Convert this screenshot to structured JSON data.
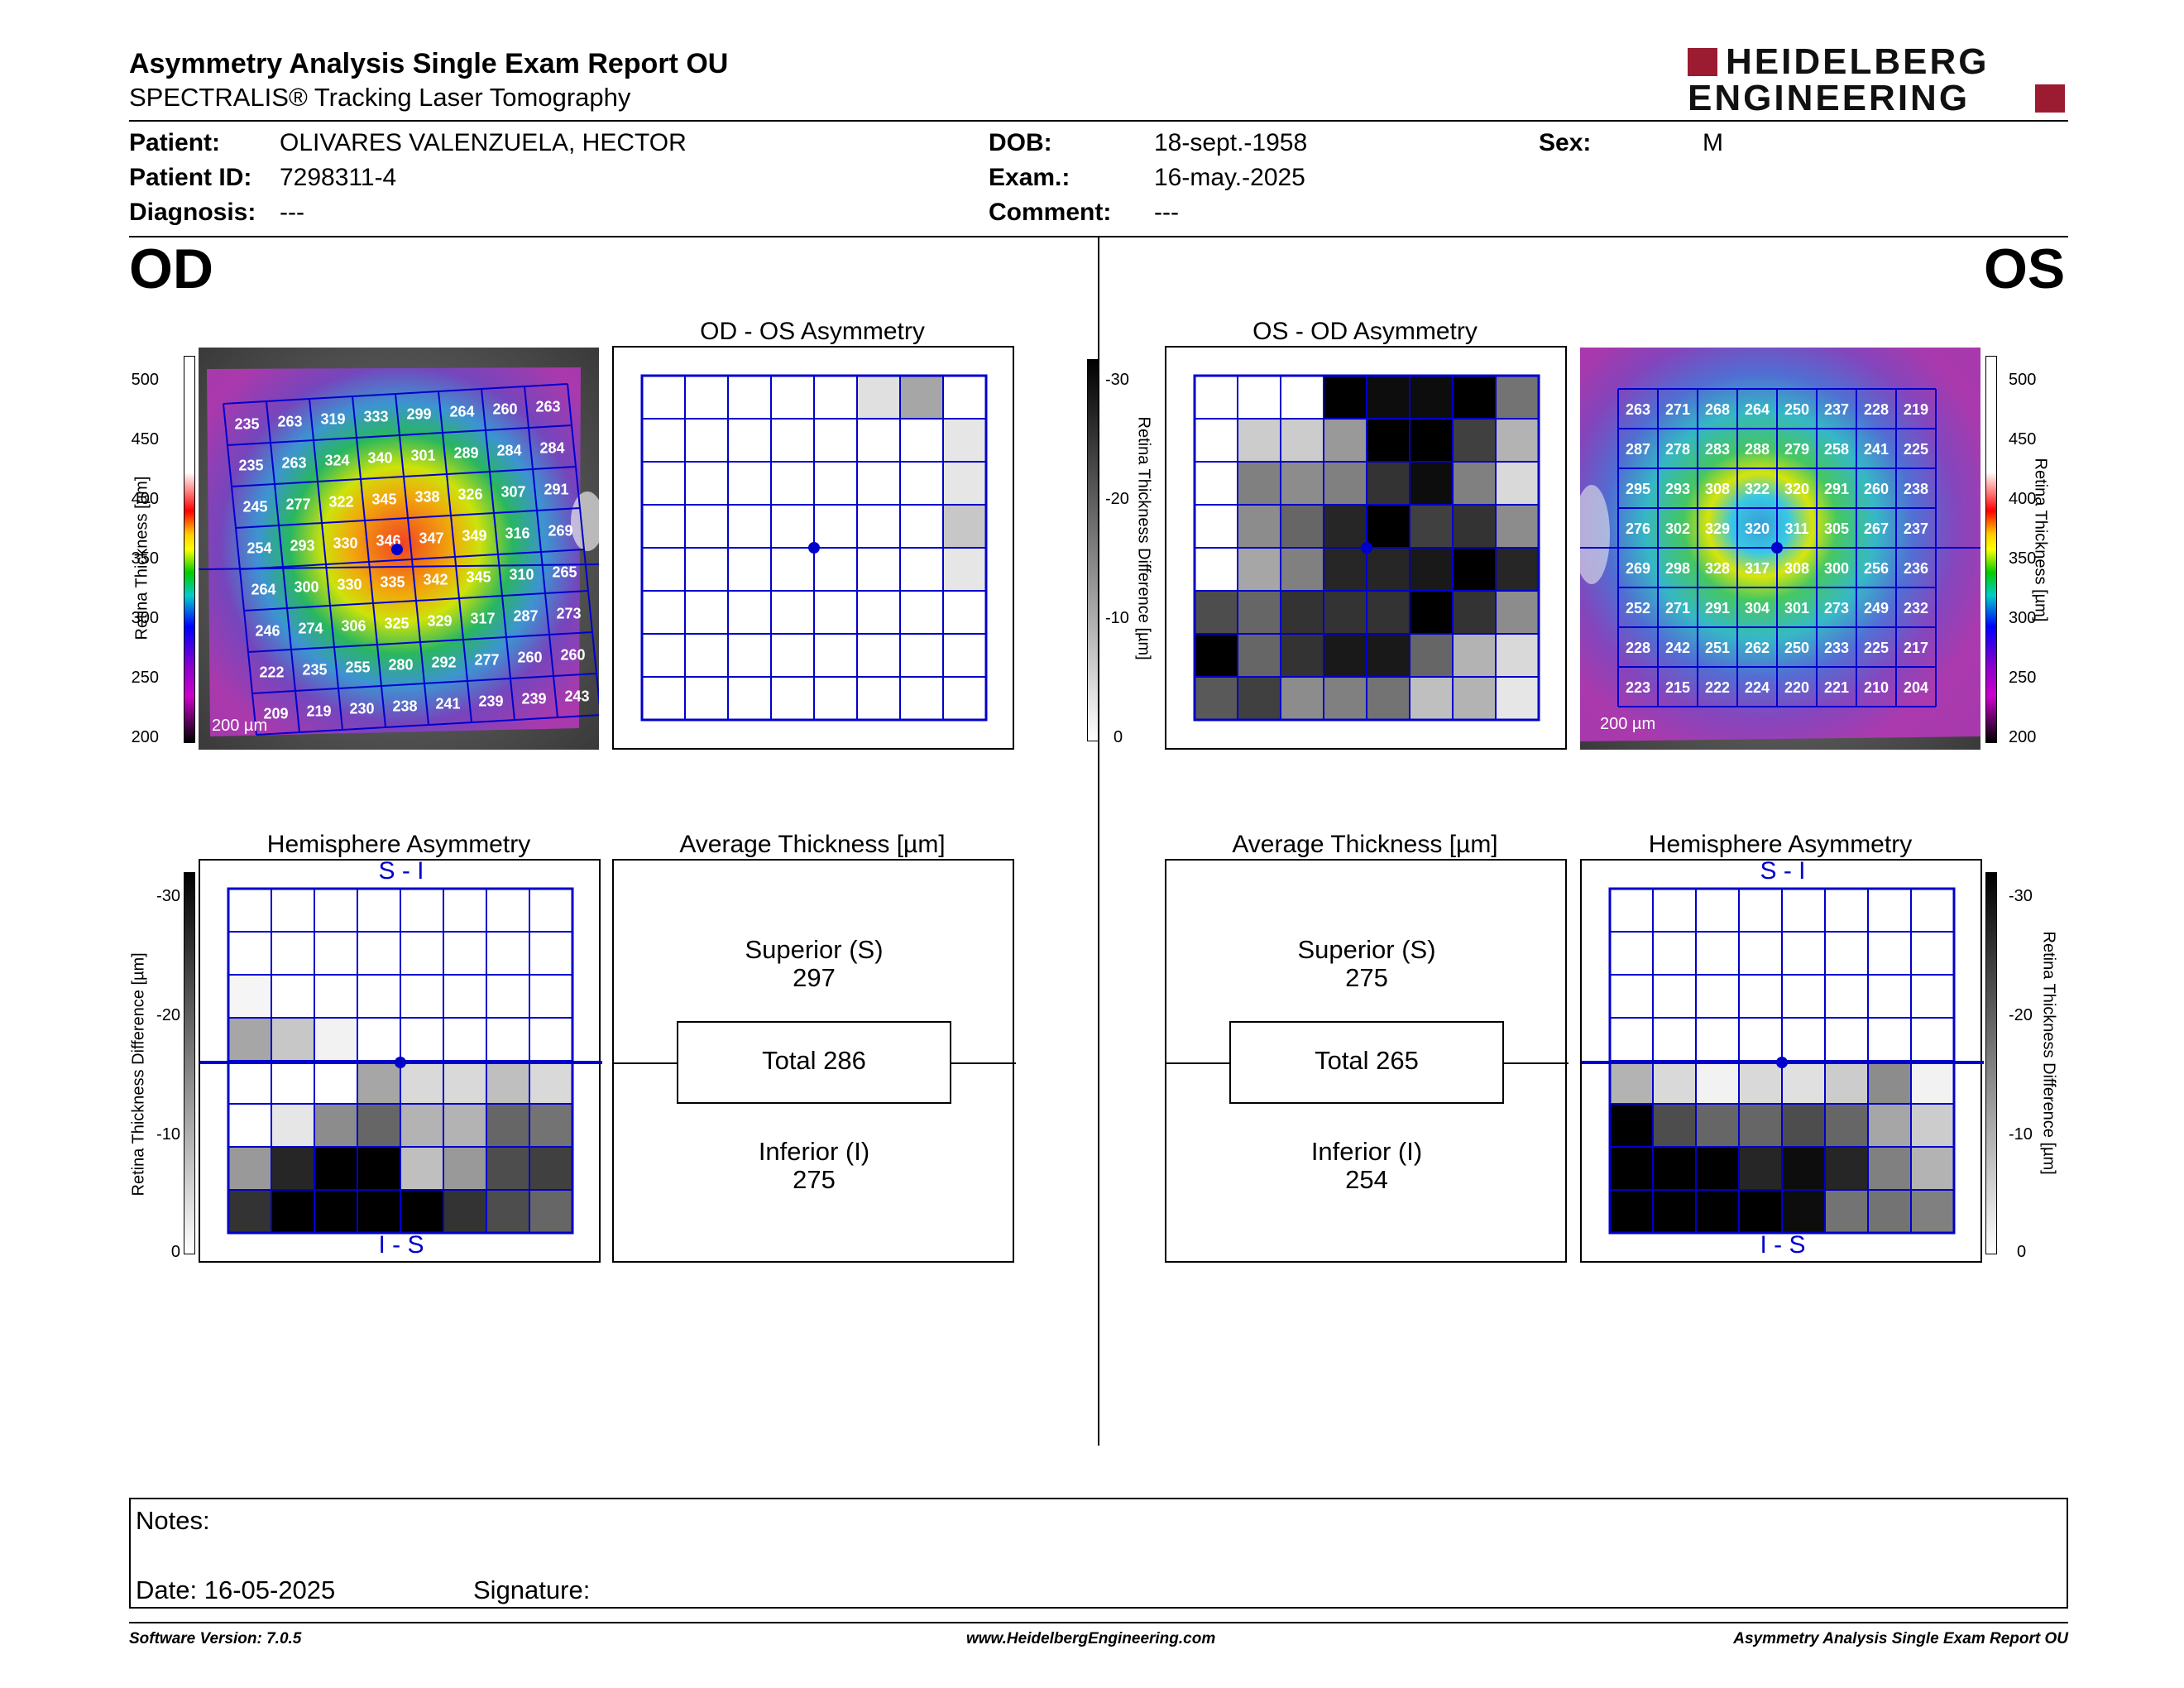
{
  "header": {
    "title": "Asymmetry Analysis Single Exam Report OU",
    "subtitle": "SPECTRALIS® Tracking Laser Tomography",
    "logo_line1": "HEIDELBERG",
    "logo_line2": "ENGINEERING",
    "brand_color": "#9b1b30"
  },
  "patient": {
    "patient_label": "Patient:",
    "patient_value": "OLIVARES VALENZUELA, HECTOR",
    "id_label": "Patient ID:",
    "id_value": "7298311-4",
    "diagnosis_label": "Diagnosis:",
    "diagnosis_value": "---",
    "dob_label": "DOB:",
    "dob_value": "18-sept.-1958",
    "exam_label": "Exam.:",
    "exam_value": "16-may.-2025",
    "comment_label": "Comment:",
    "comment_value": "---",
    "sex_label": "Sex:",
    "sex_value": "M"
  },
  "od": {
    "eye_label": "OD",
    "asym_title": "OD - OS Asymmetry",
    "hemi_title": "Hemisphere Asymmetry",
    "avg_title": "Average Thickness [µm]",
    "scale_label": "200 µm",
    "thickness_axis": "Retina  Thickness [µm]",
    "diff_axis": "Retina Thickness Difference [µm]",
    "thickness": [
      [
        235,
        263,
        319,
        333,
        299,
        264,
        260,
        263
      ],
      [
        235,
        263,
        324,
        340,
        301,
        289,
        284,
        284
      ],
      [
        245,
        277,
        322,
        345,
        338,
        326,
        307,
        291
      ],
      [
        254,
        293,
        330,
        346,
        347,
        349,
        316,
        269
      ],
      [
        264,
        300,
        330,
        335,
        342,
        345,
        310,
        265
      ],
      [
        246,
        274,
        306,
        325,
        329,
        317,
        287,
        273
      ],
      [
        222,
        235,
        255,
        280,
        292,
        277,
        260,
        260
      ],
      [
        209,
        219,
        230,
        238,
        241,
        239,
        239,
        243
      ]
    ],
    "asymmetry_gray": [
      [
        0,
        0,
        0,
        0,
        0,
        0.12,
        0.35,
        0
      ],
      [
        0,
        0,
        0,
        0,
        0,
        0,
        0,
        0.1
      ],
      [
        0,
        0,
        0,
        0,
        0,
        0,
        0,
        0.1
      ],
      [
        0,
        0,
        0,
        0,
        0,
        0,
        0,
        0.22
      ],
      [
        0,
        0,
        0,
        0,
        0,
        0,
        0,
        0.1
      ],
      [
        0,
        0,
        0,
        0,
        0,
        0,
        0,
        0
      ],
      [
        0,
        0,
        0,
        0,
        0,
        0,
        0,
        0
      ],
      [
        0,
        0,
        0,
        0,
        0,
        0,
        0,
        0
      ]
    ],
    "hemi_gray": [
      [
        0,
        0,
        0,
        0,
        0,
        0,
        0,
        0
      ],
      [
        0,
        0,
        0,
        0,
        0,
        0,
        0,
        0
      ],
      [
        0.04,
        0,
        0,
        0,
        0,
        0,
        0,
        0
      ],
      [
        0.35,
        0.22,
        0.05,
        0,
        0,
        0,
        0,
        0
      ],
      [
        0,
        0,
        0,
        0.35,
        0.15,
        0.15,
        0.25,
        0.15
      ],
      [
        0,
        0.1,
        0.45,
        0.6,
        0.3,
        0.3,
        0.6,
        0.55
      ],
      [
        0.4,
        0.85,
        1,
        1,
        0.25,
        0.4,
        0.7,
        0.75
      ],
      [
        0.8,
        1,
        1,
        1,
        1,
        0.8,
        0.7,
        0.6
      ]
    ],
    "superior_label": "Superior (S)",
    "superior_value": "297",
    "total_label": "Total 286",
    "inferior_label": "Inferior (I)",
    "inferior_value": "275",
    "si_label": "S - I",
    "is_label": "I - S"
  },
  "os": {
    "eye_label": "OS",
    "asym_title": "OS - OD Asymmetry",
    "hemi_title": "Hemisphere Asymmetry",
    "avg_title": "Average Thickness [µm]",
    "scale_label": "200 µm",
    "thickness_axis": "Retina  Thickness [µm]",
    "diff_axis": "Retina Thickness Difference [µm]",
    "thickness": [
      [
        263,
        271,
        268,
        264,
        250,
        237,
        228,
        219
      ],
      [
        287,
        278,
        283,
        288,
        279,
        258,
        241,
        225
      ],
      [
        295,
        293,
        308,
        322,
        320,
        291,
        260,
        238
      ],
      [
        276,
        302,
        329,
        320,
        311,
        305,
        267,
        237
      ],
      [
        269,
        298,
        328,
        317,
        308,
        300,
        256,
        236
      ],
      [
        252,
        271,
        291,
        304,
        301,
        273,
        249,
        232
      ],
      [
        228,
        242,
        251,
        262,
        250,
        233,
        225,
        217
      ],
      [
        223,
        215,
        222,
        224,
        220,
        221,
        210,
        204
      ]
    ],
    "asymmetry_gray": [
      [
        0,
        0,
        0,
        1,
        0.95,
        0.95,
        1,
        0.55
      ],
      [
        0,
        0.2,
        0.2,
        0.4,
        1,
        1,
        0.75,
        0.3
      ],
      [
        0,
        0.5,
        0.45,
        0.5,
        0.8,
        0.95,
        0.5,
        0.15
      ],
      [
        0,
        0.45,
        0.6,
        0.85,
        1,
        0.75,
        0.8,
        0.45
      ],
      [
        0,
        0.35,
        0.5,
        0.85,
        0.85,
        0.9,
        1,
        0.85
      ],
      [
        0.7,
        0.6,
        0.8,
        0.8,
        0.8,
        1,
        0.8,
        0.45
      ],
      [
        1,
        0.6,
        0.8,
        0.9,
        0.9,
        0.6,
        0.3,
        0.15
      ],
      [
        0.65,
        0.75,
        0.45,
        0.5,
        0.55,
        0.25,
        0.3,
        0.1
      ]
    ],
    "hemi_gray": [
      [
        0,
        0,
        0,
        0,
        0,
        0,
        0,
        0
      ],
      [
        0,
        0,
        0,
        0,
        0,
        0,
        0,
        0
      ],
      [
        0,
        0,
        0,
        0,
        0,
        0,
        0,
        0
      ],
      [
        0,
        0,
        0,
        0,
        0,
        0,
        0,
        0
      ],
      [
        0.3,
        0.15,
        0.05,
        0.15,
        0.12,
        0.2,
        0.45,
        0.05
      ],
      [
        1,
        0.7,
        0.6,
        0.6,
        0.7,
        0.6,
        0.35,
        0.2
      ],
      [
        1,
        1,
        1,
        0.85,
        0.95,
        0.85,
        0.5,
        0.3
      ],
      [
        1,
        1,
        1,
        1,
        0.95,
        0.55,
        0.55,
        0.5
      ]
    ],
    "superior_label": "Superior (S)",
    "superior_value": "275",
    "total_label": "Total 265",
    "inferior_label": "Inferior (I)",
    "inferior_value": "254",
    "si_label": "S - I",
    "is_label": "I - S"
  },
  "thickness_ticks": [
    "500",
    "450",
    "400",
    "350",
    "300",
    "250",
    "200"
  ],
  "diff_ticks": [
    "-30",
    "-20",
    "-10",
    "0"
  ],
  "notes": {
    "notes_label": "Notes:",
    "date_label": "Date: 16-05-2025",
    "signature_label": "Signature:"
  },
  "footer": {
    "left": "Software Version: 7.0.5",
    "center": "www.HeidelbergEngineering.com",
    "right": "Asymmetry Analysis Single Exam Report OU"
  },
  "colors": {
    "grid_line": "#0000cc",
    "brand": "#9b1b30"
  }
}
